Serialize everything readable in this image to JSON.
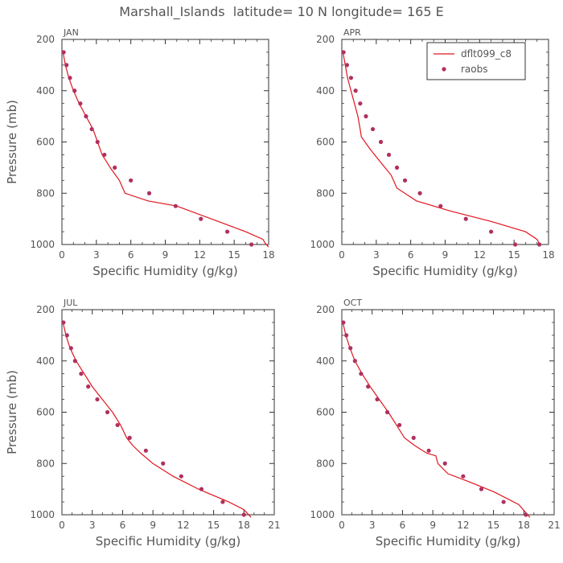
{
  "title": "Marshall_Islands  latitude= 10 N longitude= 165 E",
  "colors": {
    "model": "#e0161e",
    "obs": "#b03060",
    "axis": "#333333",
    "text": "#555555"
  },
  "legend": {
    "model_label": "dflt099_c8",
    "obs_label": "raobs",
    "placement": "top-right of first panel"
  },
  "chart_data": [
    {
      "type": "line",
      "panel_label": "JAN",
      "xlabel": "Specific Humidity (g/kg)",
      "ylabel": "Pressure (mb)",
      "xlim": [
        0,
        18
      ],
      "ylim": [
        200,
        1000
      ],
      "y_inverted": true,
      "xticks": [
        0,
        3,
        6,
        9,
        12,
        15,
        18
      ],
      "yticks": [
        200,
        400,
        600,
        800,
        1000
      ],
      "series": [
        {
          "name": "dflt099_c8",
          "style": "line",
          "x": [
            0.1,
            0.3,
            0.6,
            1.0,
            1.5,
            2.1,
            2.7,
            3.1,
            3.5,
            4.2,
            5.0,
            5.5,
            7.5,
            10.0,
            13.0,
            16.0,
            17.5,
            17.7,
            18.0
          ],
          "y": [
            250,
            300,
            350,
            400,
            450,
            500,
            550,
            600,
            650,
            700,
            750,
            800,
            830,
            850,
            900,
            950,
            980,
            995,
            1010
          ]
        },
        {
          "name": "raobs",
          "style": "markers",
          "x": [
            0.15,
            0.4,
            0.7,
            1.1,
            1.6,
            2.1,
            2.6,
            3.1,
            3.7,
            4.6,
            6.0,
            7.6,
            9.9,
            12.1,
            14.4,
            16.5
          ],
          "y": [
            250,
            300,
            350,
            400,
            450,
            500,
            550,
            600,
            650,
            700,
            750,
            800,
            850,
            900,
            950,
            1000
          ]
        }
      ]
    },
    {
      "type": "line",
      "panel_label": "APR",
      "xlabel": "Specific Humidity (g/kg)",
      "ylabel": "",
      "xlim": [
        0,
        18
      ],
      "ylim": [
        200,
        1000
      ],
      "y_inverted": true,
      "xticks": [
        0,
        3,
        6,
        9,
        12,
        15,
        18
      ],
      "yticks": [
        200,
        400,
        600,
        800,
        1000
      ],
      "series": [
        {
          "name": "dflt099_c8",
          "style": "line",
          "x": [
            0.1,
            0.3,
            0.5,
            0.8,
            1.1,
            1.4,
            1.6,
            1.7,
            2.5,
            3.4,
            4.3,
            4.8,
            6.5,
            9.5,
            13.0,
            16.0,
            17.0,
            17.3
          ],
          "y": [
            250,
            300,
            350,
            400,
            450,
            500,
            550,
            580,
            630,
            680,
            730,
            780,
            830,
            870,
            910,
            950,
            980,
            1005
          ]
        },
        {
          "name": "raobs",
          "style": "markers",
          "x": [
            0.15,
            0.45,
            0.8,
            1.2,
            1.6,
            2.1,
            2.7,
            3.4,
            4.1,
            4.8,
            5.5,
            6.8,
            8.6,
            10.8,
            13.0,
            15.1,
            17.2
          ],
          "y": [
            250,
            300,
            350,
            400,
            450,
            500,
            550,
            600,
            650,
            700,
            750,
            800,
            850,
            900,
            950,
            1000,
            1000
          ]
        }
      ]
    },
    {
      "type": "line",
      "panel_label": "JUL",
      "xlabel": "Specific Humidity (g/kg)",
      "ylabel": "Pressure (mb)",
      "xlim": [
        0,
        21
      ],
      "ylim": [
        200,
        1000
      ],
      "y_inverted": true,
      "xticks": [
        0,
        3,
        6,
        9,
        12,
        15,
        18,
        21
      ],
      "yticks": [
        200,
        400,
        600,
        800,
        1000
      ],
      "series": [
        {
          "name": "dflt099_c8",
          "style": "line",
          "x": [
            0.1,
            0.4,
            0.8,
            1.4,
            2.2,
            3.0,
            4.0,
            5.0,
            5.8,
            6.4,
            7.0,
            7.8,
            9.0,
            11.0,
            13.5,
            16.5,
            18.0,
            18.7
          ],
          "y": [
            250,
            300,
            350,
            400,
            450,
            500,
            550,
            600,
            650,
            700,
            730,
            760,
            800,
            850,
            900,
            950,
            980,
            1010
          ]
        },
        {
          "name": "raobs",
          "style": "markers",
          "x": [
            0.15,
            0.5,
            0.9,
            1.3,
            1.9,
            2.6,
            3.5,
            4.5,
            5.5,
            6.7,
            8.3,
            10.0,
            11.8,
            13.8,
            15.9,
            18.0
          ],
          "y": [
            250,
            300,
            350,
            400,
            450,
            500,
            550,
            600,
            650,
            700,
            750,
            800,
            850,
            900,
            950,
            1000
          ]
        }
      ]
    },
    {
      "type": "line",
      "panel_label": "OCT",
      "xlabel": "Specific Humidity (g/kg)",
      "ylabel": "",
      "xlim": [
        0,
        21
      ],
      "ylim": [
        200,
        1000
      ],
      "y_inverted": true,
      "xticks": [
        0,
        3,
        6,
        9,
        12,
        15,
        18,
        21
      ],
      "yticks": [
        200,
        400,
        600,
        800,
        1000
      ],
      "series": [
        {
          "name": "dflt099_c8",
          "style": "line",
          "x": [
            0.1,
            0.4,
            0.8,
            1.3,
            2.0,
            2.8,
            3.7,
            4.6,
            5.4,
            6.2,
            7.2,
            8.4,
            9.3,
            9.5,
            10.5,
            12.5,
            15.0,
            17.5,
            18.6
          ],
          "y": [
            250,
            300,
            350,
            400,
            450,
            500,
            550,
            600,
            650,
            700,
            730,
            760,
            770,
            800,
            840,
            870,
            910,
            960,
            1010
          ]
        },
        {
          "name": "raobs",
          "style": "markers",
          "x": [
            0.15,
            0.45,
            0.85,
            1.3,
            1.9,
            2.6,
            3.5,
            4.5,
            5.7,
            7.1,
            8.6,
            10.2,
            12.0,
            13.8,
            16.0,
            18.2
          ],
          "y": [
            250,
            300,
            350,
            400,
            450,
            500,
            550,
            600,
            650,
            700,
            750,
            800,
            850,
            900,
            950,
            1000
          ]
        }
      ]
    }
  ]
}
